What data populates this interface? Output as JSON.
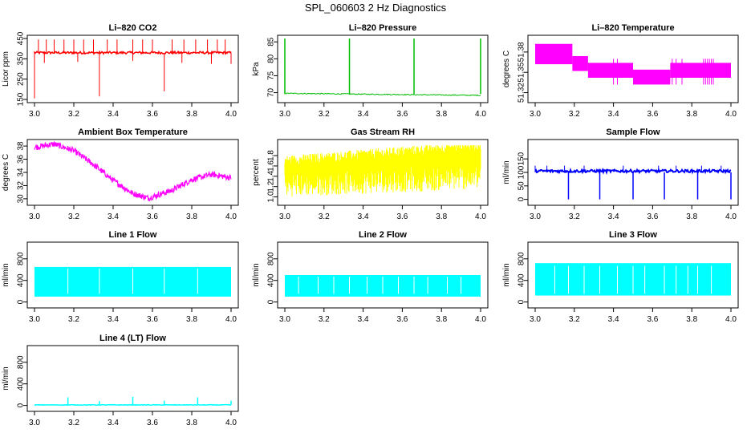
{
  "title": "SPL_060603  2 Hz Diagnostics",
  "chart_data": [
    {
      "type": "line",
      "title": "Li–820 CO2",
      "ylabel": "Licor ppm",
      "color": "#ff0000",
      "xlim": [
        3.0,
        4.0
      ],
      "ylim": [
        150,
        450
      ],
      "xticks": [
        "3.0",
        "3.2",
        "3.4",
        "3.6",
        "3.8",
        "4.0"
      ],
      "yticks": [
        "150",
        "250",
        "350",
        "450"
      ],
      "x": [
        3.0,
        3.1,
        3.2,
        3.3,
        3.33,
        3.4,
        3.5,
        3.6,
        3.66,
        3.7,
        3.8,
        3.9,
        4.0
      ],
      "y": [
        380,
        380,
        380,
        380,
        160,
        380,
        380,
        380,
        190,
        380,
        380,
        380,
        380
      ]
    },
    {
      "type": "line",
      "title": "Li–820 Pressure",
      "ylabel": "kPa",
      "color": "#00bb00",
      "xlim": [
        3.0,
        4.0
      ],
      "ylim": [
        68,
        86
      ],
      "xticks": [
        "3.0",
        "3.2",
        "3.4",
        "3.6",
        "3.8",
        "4.0"
      ],
      "yticks": [
        "70",
        "75",
        "80",
        "85"
      ],
      "x": [
        3.0,
        3.1,
        3.2,
        3.33,
        3.4,
        3.5,
        3.66,
        3.7,
        3.8,
        3.9,
        4.0
      ],
      "y": [
        69.8,
        69.7,
        69.6,
        86,
        69.5,
        69.4,
        86,
        69.3,
        69.2,
        69.1,
        86
      ]
    },
    {
      "type": "line",
      "title": "Li–820 Temperature",
      "ylabel": "degrees C",
      "color": "#ff00ff",
      "xlim": [
        3.0,
        4.0
      ],
      "ylim": [
        51.31,
        51.4
      ],
      "xticks": [
        "3.0",
        "3.2",
        "3.4",
        "3.6",
        "3.8",
        "4.0"
      ],
      "yticks": [
        "51.32",
        "51.35",
        "51.38"
      ],
      "x": [
        3.0,
        3.19,
        3.27,
        3.5,
        3.69,
        3.85,
        4.0
      ],
      "y": [
        51.38,
        51.365,
        51.355,
        51.345,
        51.335,
        51.345,
        51.345
      ]
    },
    {
      "type": "line",
      "title": "Ambient Box Temperature",
      "ylabel": "degrees C",
      "color": "#ff00ff",
      "xlim": [
        3.0,
        4.0
      ],
      "ylim": [
        29.5,
        38.5
      ],
      "xticks": [
        "3.0",
        "3.2",
        "3.4",
        "3.6",
        "3.8",
        "4.0"
      ],
      "yticks": [
        "30",
        "32",
        "34",
        "36",
        "38"
      ],
      "x": [
        3.0,
        3.1,
        3.2,
        3.3,
        3.4,
        3.5,
        3.58,
        3.7,
        3.8,
        3.9,
        4.0
      ],
      "y": [
        37.8,
        38.3,
        37.3,
        35.2,
        32.8,
        30.8,
        30.1,
        31.3,
        32.9,
        33.7,
        33.2
      ]
    },
    {
      "type": "line",
      "title": "Gas Stream RH",
      "ylabel": "percent",
      "color": "#ffff00",
      "xlim": [
        3.0,
        4.0
      ],
      "ylim": [
        0.9,
        2.05
      ],
      "xticks": [
        "3.0",
        "3.2",
        "3.4",
        "3.6",
        "3.8",
        "4.0"
      ],
      "yticks": [
        "1.0",
        "1.2",
        "1.4",
        "1.6",
        "1.8"
      ],
      "x": [
        3.0,
        3.2,
        3.4,
        3.6,
        3.8,
        4.0
      ],
      "y": [
        1.6,
        1.65,
        1.7,
        1.7,
        1.75,
        1.7
      ]
    },
    {
      "type": "line",
      "title": "Sample Flow",
      "ylabel": "ml/min",
      "color": "#0000ff",
      "xlim": [
        3.0,
        4.0
      ],
      "ylim": [
        -10,
        210
      ],
      "xticks": [
        "3.0",
        "3.2",
        "3.4",
        "3.6",
        "3.8",
        "4.0"
      ],
      "yticks": [
        "0",
        "50",
        "100",
        "150"
      ],
      "x": [
        3.0,
        3.17,
        3.33,
        3.5,
        3.66,
        3.83,
        4.0
      ],
      "y": [
        105,
        0,
        0,
        0,
        0,
        0,
        0
      ]
    },
    {
      "type": "line",
      "title": "Line 1 Flow",
      "ylabel": "ml/min",
      "color": "#00ffff",
      "xlim": [
        3.0,
        4.0
      ],
      "ylim": [
        -50,
        1050
      ],
      "xticks": [
        "3.0",
        "3.2",
        "3.4",
        "3.6",
        "3.8",
        "4.0"
      ],
      "yticks": [
        "0",
        "400",
        "800"
      ],
      "x": [
        3.0,
        4.0
      ],
      "y": [
        650,
        650
      ]
    },
    {
      "type": "line",
      "title": "Line 2 Flow",
      "ylabel": "ml/min",
      "color": "#00ffff",
      "xlim": [
        3.0,
        4.0
      ],
      "ylim": [
        -50,
        1050
      ],
      "xticks": [
        "3.0",
        "3.2",
        "3.4",
        "3.6",
        "3.8",
        "4.0"
      ],
      "yticks": [
        "0",
        "400",
        "800"
      ],
      "x": [
        3.0,
        4.0
      ],
      "y": [
        500,
        500
      ]
    },
    {
      "type": "line",
      "title": "Line 3 Flow",
      "ylabel": "ml/min",
      "color": "#00ffff",
      "xlim": [
        3.0,
        4.0
      ],
      "ylim": [
        -50,
        1050
      ],
      "xticks": [
        "3.0",
        "3.2",
        "3.4",
        "3.6",
        "3.8",
        "4.0"
      ],
      "yticks": [
        "0",
        "400",
        "800"
      ],
      "x": [
        3.0,
        4.0
      ],
      "y": [
        700,
        700
      ]
    },
    {
      "type": "line",
      "title": "Line 4 (LT) Flow",
      "ylabel": "ml/min",
      "color": "#00ffff",
      "xlim": [
        3.0,
        4.0
      ],
      "ylim": [
        -50,
        1050
      ],
      "xticks": [
        "3.0",
        "3.2",
        "3.4",
        "3.6",
        "3.8",
        "4.0"
      ],
      "yticks": [
        "0",
        "400",
        "800"
      ],
      "x": [
        3.0,
        3.17,
        3.33,
        3.5,
        3.66,
        3.83,
        4.0
      ],
      "y": [
        10,
        150,
        80,
        160,
        90,
        150,
        10
      ]
    }
  ]
}
